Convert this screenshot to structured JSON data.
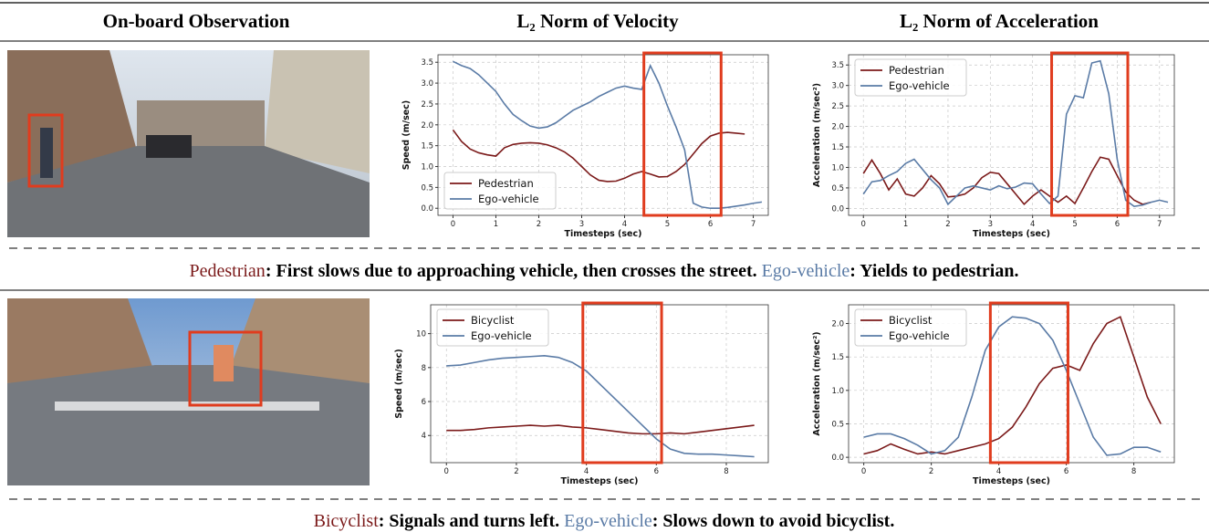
{
  "header": {
    "columns": [
      "On-board Observation",
      "L₂ Norm of Velocity",
      "L₂ Norm of Acceleration"
    ]
  },
  "captions": [
    [
      {
        "text": "Pedestrian",
        "color": "#7b1a1a"
      },
      {
        "text": ": First slows due to approaching vehicle, then crosses the street. "
      },
      {
        "text": "Ego-vehicle",
        "color": "#5a7ba6"
      },
      {
        "text": ": Yields to pedestrian."
      }
    ],
    [
      {
        "text": "Bicyclist",
        "color": "#7b1a1a"
      },
      {
        "text": ": Signals and turns left. "
      },
      {
        "text": "Ego-vehicle",
        "color": "#5a7ba6"
      },
      {
        "text": ": Slows down to avoid bicyclist."
      }
    ]
  ],
  "chart_data": [
    {
      "type": "line",
      "xlabel": "Timesteps (sec)",
      "ylabel": "Speed (m/sec)",
      "x": [
        0,
        0.2,
        0.4,
        0.6,
        0.8,
        1.0,
        1.2,
        1.4,
        1.6,
        1.8,
        2.0,
        2.2,
        2.4,
        2.6,
        2.8,
        3.0,
        3.2,
        3.4,
        3.6,
        3.8,
        4.0,
        4.2,
        4.4,
        4.6,
        4.8,
        5.0,
        5.2,
        5.4,
        5.6,
        5.8,
        6.0,
        6.2,
        6.4,
        6.6,
        6.8,
        7.0,
        7.2
      ],
      "series": [
        {
          "name": "Pedestrian",
          "color": "#7b1a1a",
          "values": [
            1.88,
            1.6,
            1.42,
            1.33,
            1.28,
            1.25,
            1.45,
            1.53,
            1.56,
            1.57,
            1.56,
            1.52,
            1.45,
            1.35,
            1.2,
            1.0,
            0.8,
            0.67,
            0.64,
            0.65,
            0.72,
            0.82,
            0.88,
            0.82,
            0.75,
            0.76,
            0.88,
            1.05,
            1.3,
            1.55,
            1.73,
            1.8,
            1.82,
            1.8,
            1.78,
            null,
            null
          ]
        },
        {
          "name": "Ego-vehicle",
          "color": "#5a7ba6",
          "values": [
            3.52,
            3.42,
            3.35,
            3.2,
            3.0,
            2.8,
            2.5,
            2.25,
            2.1,
            1.97,
            1.92,
            1.95,
            2.05,
            2.2,
            2.35,
            2.45,
            2.55,
            2.68,
            2.78,
            2.88,
            2.93,
            2.88,
            2.85,
            3.42,
            3.0,
            2.45,
            1.95,
            1.4,
            0.12,
            0.03,
            0.0,
            0.0,
            0.02,
            0.05,
            0.08,
            0.12,
            0.15
          ]
        }
      ],
      "xlim": [
        -0.35,
        7.35
      ],
      "xticks": [
        0,
        1,
        2,
        3,
        4,
        5,
        6,
        7
      ],
      "ylim": [
        -0.17,
        3.68
      ],
      "yticks": [
        {
          "value": 0,
          "label": "0.0"
        },
        0.5,
        {
          "value": 1,
          "label": "1.0"
        },
        1.5,
        {
          "value": 2,
          "label": "2.0"
        },
        2.5,
        {
          "value": 3,
          "label": "3.0"
        },
        3.5
      ],
      "grid": true,
      "legend": "lower left",
      "highlight": [
        4.45,
        6.25
      ],
      "highlight_color": "#e03c1e"
    },
    {
      "type": "line",
      "xlabel": "Timesteps (sec)",
      "ylabel": "Acceleration (m/sec²)",
      "x": [
        0,
        0.2,
        0.4,
        0.6,
        0.8,
        1.0,
        1.2,
        1.4,
        1.6,
        1.8,
        2.0,
        2.2,
        2.4,
        2.6,
        2.8,
        3.0,
        3.2,
        3.4,
        3.6,
        3.8,
        4.0,
        4.2,
        4.4,
        4.6,
        4.8,
        5.0,
        5.2,
        5.4,
        5.6,
        5.8,
        6.0,
        6.2,
        6.4,
        6.6,
        6.8,
        7.0,
        7.2
      ],
      "series": [
        {
          "name": "Pedestrian",
          "color": "#7b1a1a",
          "values": [
            0.85,
            1.18,
            0.85,
            0.45,
            0.72,
            0.35,
            0.3,
            0.5,
            0.8,
            0.6,
            0.28,
            0.3,
            0.35,
            0.5,
            0.75,
            0.88,
            0.85,
            0.6,
            0.35,
            0.1,
            0.3,
            0.45,
            0.3,
            0.15,
            0.3,
            0.12,
            0.5,
            0.9,
            1.25,
            1.2,
            0.8,
            0.4,
            0.2,
            0.1,
            0.15,
            null,
            null
          ]
        },
        {
          "name": "Ego-vehicle",
          "color": "#5a7ba6",
          "values": [
            0.35,
            0.65,
            0.68,
            0.8,
            0.9,
            1.1,
            1.2,
            0.95,
            0.7,
            0.5,
            0.1,
            0.3,
            0.5,
            0.55,
            0.5,
            0.45,
            0.55,
            0.48,
            0.52,
            0.62,
            0.6,
            0.35,
            0.12,
            0.3,
            2.3,
            2.75,
            2.7,
            3.55,
            3.6,
            2.8,
            1.2,
            0.2,
            0.05,
            0.08,
            0.15,
            0.2,
            0.15
          ]
        }
      ],
      "xlim": [
        -0.35,
        7.35
      ],
      "xticks": [
        0,
        1,
        2,
        3,
        4,
        5,
        6,
        7
      ],
      "ylim": [
        -0.17,
        3.75
      ],
      "yticks": [
        {
          "value": 0,
          "label": "0.0"
        },
        0.5,
        {
          "value": 1,
          "label": "1.0"
        },
        1.5,
        {
          "value": 2,
          "label": "2.0"
        },
        2.5,
        {
          "value": 3,
          "label": "3.0"
        },
        3.5
      ],
      "grid": true,
      "legend": "upper left",
      "highlight": [
        4.45,
        6.25
      ],
      "highlight_color": "#e03c1e"
    },
    {
      "type": "line",
      "xlabel": "Timesteps (sec)",
      "ylabel": "Speed (m/sec)",
      "x": [
        0,
        0.4,
        0.8,
        1.2,
        1.6,
        2.0,
        2.4,
        2.8,
        3.2,
        3.6,
        4.0,
        4.4,
        4.8,
        5.2,
        5.6,
        6.0,
        6.4,
        6.8,
        7.2,
        7.6,
        8.0,
        8.4,
        8.8
      ],
      "series": [
        {
          "name": "Bicyclist",
          "color": "#7b1a1a",
          "values": [
            4.3,
            4.3,
            4.35,
            4.45,
            4.5,
            4.55,
            4.6,
            4.55,
            4.6,
            4.5,
            4.45,
            4.35,
            4.25,
            4.15,
            4.1,
            4.1,
            4.15,
            4.1,
            4.2,
            4.3,
            4.4,
            4.5,
            4.6
          ]
        },
        {
          "name": "Ego-vehicle",
          "color": "#5a7ba6",
          "values": [
            8.1,
            8.15,
            8.3,
            8.45,
            8.55,
            8.6,
            8.65,
            8.7,
            8.6,
            8.3,
            7.8,
            7.0,
            6.2,
            5.4,
            4.6,
            3.8,
            3.2,
            2.95,
            2.9,
            2.9,
            2.85,
            2.8,
            2.75
          ]
        }
      ],
      "xlim": [
        -0.45,
        9.2
      ],
      "xticks": [
        0,
        2,
        4,
        6,
        8
      ],
      "ylim": [
        2.4,
        11.7
      ],
      "yticks": [
        4,
        6,
        8,
        10
      ],
      "grid": true,
      "legend": "upper left",
      "highlight": [
        3.9,
        6.15
      ],
      "highlight_color": "#e03c1e"
    },
    {
      "type": "line",
      "xlabel": "Timesteps (sec)",
      "ylabel": "Acceleration (m/sec²)",
      "x": [
        0,
        0.4,
        0.8,
        1.2,
        1.6,
        2.0,
        2.4,
        2.8,
        3.2,
        3.6,
        4.0,
        4.4,
        4.8,
        5.2,
        5.6,
        6.0,
        6.4,
        6.8,
        7.2,
        7.6,
        8.0,
        8.4,
        8.8
      ],
      "series": [
        {
          "name": "Bicyclist",
          "color": "#7b1a1a",
          "values": [
            0.05,
            0.1,
            0.2,
            0.12,
            0.05,
            0.08,
            0.05,
            0.1,
            0.15,
            0.2,
            0.28,
            0.45,
            0.75,
            1.1,
            1.33,
            1.38,
            1.3,
            1.7,
            2.0,
            2.1,
            1.5,
            0.9,
            0.5
          ]
        },
        {
          "name": "Ego-vehicle",
          "color": "#5a7ba6",
          "values": [
            0.3,
            0.35,
            0.35,
            0.28,
            0.18,
            0.05,
            0.1,
            0.3,
            0.9,
            1.6,
            1.95,
            2.1,
            2.08,
            2.0,
            1.75,
            1.3,
            0.8,
            0.3,
            0.03,
            0.05,
            0.15,
            0.15,
            0.08
          ]
        }
      ],
      "xlim": [
        -0.45,
        9.2
      ],
      "xticks": [
        0,
        2,
        4,
        6,
        8
      ],
      "ylim": [
        -0.08,
        2.28
      ],
      "yticks": [
        {
          "value": 0,
          "label": "0.0"
        },
        0.5,
        {
          "value": 1,
          "label": "1.0"
        },
        1.5,
        {
          "value": 2,
          "label": "2.0"
        }
      ],
      "grid": true,
      "legend": "upper left",
      "highlight": [
        3.75,
        6.05
      ],
      "highlight_color": "#e03c1e"
    }
  ]
}
